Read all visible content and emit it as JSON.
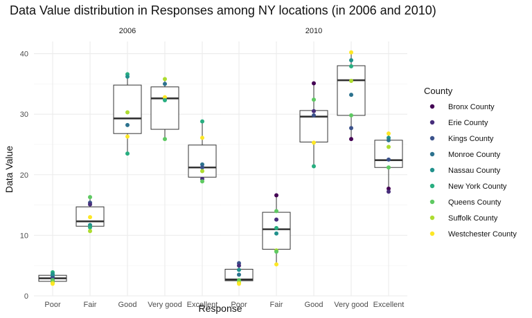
{
  "chart_data": {
    "type": "box",
    "title": "Data Value distribution in Responses among NY locations (in 2006 and 2010)",
    "xlabel": "Response",
    "ylabel": "Data Value",
    "ylim": [
      0,
      42
    ],
    "yticks": [
      0,
      10,
      20,
      30,
      40
    ],
    "categories": [
      "Poor",
      "Fair",
      "Good",
      "Very good",
      "Excellent"
    ],
    "legend": {
      "title": "County",
      "position": "right",
      "entries": [
        {
          "name": "Bronx County",
          "color": "#440154"
        },
        {
          "name": "Erie County",
          "color": "#472d7b"
        },
        {
          "name": "Kings County",
          "color": "#3b528b"
        },
        {
          "name": "Monroe County",
          "color": "#2c728e"
        },
        {
          "name": "Nassau County",
          "color": "#21918c"
        },
        {
          "name": "New York County",
          "color": "#28ae80"
        },
        {
          "name": "Queens County",
          "color": "#5ec962"
        },
        {
          "name": "Suffolk County",
          "color": "#addc30"
        },
        {
          "name": "Westchester County",
          "color": "#fde725"
        }
      ]
    },
    "panels": [
      {
        "label": "2006",
        "boxes": [
          {
            "category": "Poor",
            "q1": 2.4,
            "median": 2.9,
            "q3": 3.4,
            "lower": 2.0,
            "upper": 3.9
          },
          {
            "category": "Fair",
            "q1": 11.5,
            "median": 12.3,
            "q3": 14.7,
            "lower": 10.7,
            "upper": 16.3
          },
          {
            "category": "Good",
            "q1": 26.8,
            "median": 29.3,
            "q3": 34.8,
            "lower": 23.5,
            "upper": 36.6
          },
          {
            "category": "Very good",
            "q1": 27.5,
            "median": 32.6,
            "q3": 34.5,
            "lower": 25.9,
            "upper": 35.8
          },
          {
            "category": "Excellent",
            "q1": 19.6,
            "median": 21.2,
            "q3": 24.9,
            "lower": 18.9,
            "upper": 28.8
          }
        ],
        "points": [
          {
            "category": "Poor",
            "values": [
              3.4,
              2.8,
              3.1,
              2.5,
              3.9,
              3.6,
              2.6,
              2.2,
              2.0
            ],
            "colors": [
              4,
              1,
              2,
              3,
              5,
              4,
              6,
              7,
              8
            ]
          },
          {
            "category": "Fair",
            "values": [
              15.4,
              15.1,
              11.7,
              11.3,
              16.3,
              10.7,
              13.0
            ],
            "colors": [
              2,
              1,
              4,
              5,
              6,
              7,
              8
            ]
          },
          {
            "category": "Good",
            "values": [
              36.6,
              36.2,
              28.2,
              23.5,
              30.3,
              26.3
            ],
            "colors": [
              5,
              4,
              3,
              5,
              7,
              8
            ]
          },
          {
            "category": "Very good",
            "values": [
              35.8,
              35.0,
              32.8,
              32.3,
              25.9
            ],
            "colors": [
              7,
              3,
              8,
              5,
              6
            ]
          },
          {
            "category": "Excellent",
            "values": [
              28.8,
              26.1,
              21.7,
              21.2,
              20.6,
              19.3,
              18.9
            ],
            "colors": [
              5,
              8,
              3,
              2,
              7,
              1,
              6
            ]
          }
        ]
      },
      {
        "label": "2010",
        "boxes": [
          {
            "category": "Poor",
            "q1": 2.5,
            "median": 2.7,
            "q3": 4.4,
            "lower": 2.0,
            "upper": 5.4
          },
          {
            "category": "Fair",
            "q1": 7.7,
            "median": 11.0,
            "q3": 13.8,
            "lower": 5.2,
            "upper": 16.6
          },
          {
            "category": "Good",
            "q1": 25.4,
            "median": 29.6,
            "q3": 30.6,
            "lower": 21.4,
            "upper": 35.1
          },
          {
            "category": "Very good",
            "q1": 29.8,
            "median": 35.6,
            "q3": 38.0,
            "lower": 25.9,
            "upper": 40.2
          },
          {
            "category": "Excellent",
            "q1": 21.2,
            "median": 22.4,
            "q3": 25.7,
            "lower": 17.2,
            "upper": 26.8
          }
        ],
        "points": [
          {
            "category": "Poor",
            "values": [
              5.4,
              5.0,
              4.3,
              3.5,
              2.6,
              2.2,
              2.0
            ],
            "colors": [
              2,
              1,
              4,
              3,
              6,
              7,
              8
            ]
          },
          {
            "category": "Fair",
            "values": [
              16.6,
              14.0,
              12.6,
              11.2,
              10.3,
              7.5,
              7.3,
              5.2
            ],
            "colors": [
              0,
              6,
              1,
              5,
              4,
              7,
              6,
              8
            ]
          },
          {
            "category": "Good",
            "values": [
              35.1,
              32.4,
              30.5,
              29.8,
              25.3,
              21.4
            ],
            "colors": [
              0,
              6,
              1,
              2,
              8,
              5
            ]
          },
          {
            "category": "Very good",
            "values": [
              40.2,
              38.9,
              37.9,
              35.5,
              33.2,
              29.8,
              27.7,
              25.9
            ],
            "colors": [
              8,
              4,
              5,
              7,
              3,
              6,
              2,
              0
            ]
          },
          {
            "category": "Excellent",
            "values": [
              26.8,
              26.1,
              25.7,
              24.6,
              22.5,
              21.2,
              17.7,
              17.2
            ],
            "colors": [
              8,
              4,
              3,
              7,
              2,
              6,
              0,
              1
            ]
          }
        ]
      }
    ]
  }
}
